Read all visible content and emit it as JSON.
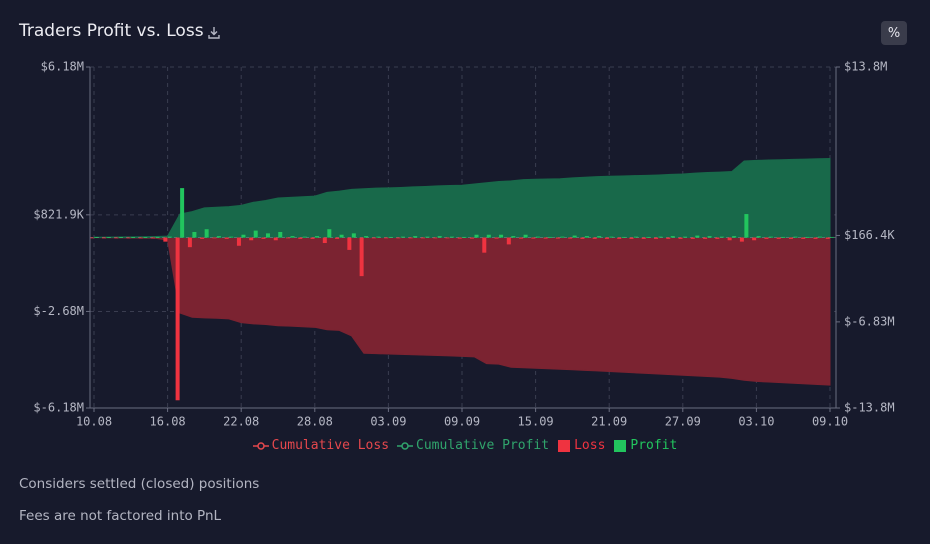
{
  "chart_data": {
    "type": "combo",
    "title": "Traders Profit vs. Loss",
    "categories": [
      "10.08",
      null,
      null,
      null,
      null,
      null,
      "16.08",
      null,
      null,
      null,
      null,
      null,
      "22.08",
      null,
      null,
      null,
      null,
      null,
      "28.08",
      null,
      null,
      null,
      null,
      null,
      "03.09",
      null,
      null,
      null,
      null,
      null,
      "09.09",
      null,
      null,
      null,
      null,
      null,
      "15.09",
      null,
      null,
      null,
      null,
      null,
      "21.09",
      null,
      null,
      null,
      null,
      null,
      "27.09",
      null,
      null,
      null,
      null,
      null,
      "03.10",
      null,
      null,
      null,
      null,
      null,
      "09.10"
    ],
    "ylim": [
      -6180000.0,
      6180000.0
    ],
    "yticks": [
      {
        "value": -6180000.0,
        "label": "$-6.18M"
      },
      {
        "value": -2680000.0,
        "label": "$-2.68M"
      },
      {
        "value": 821900,
        "label": "$821.9K"
      },
      {
        "value": 6180000.0,
        "label": "$6.18M"
      }
    ],
    "y2lim": [
      -13800000.0,
      13800000.0
    ],
    "y2ticks": [
      {
        "value": -13800000.0,
        "label": "$-13.8M"
      },
      {
        "value": -6830000.0,
        "label": "$-6.83M"
      },
      {
        "value": 166400,
        "label": "$166.4K"
      },
      {
        "value": 13800000.0,
        "label": "$13.8M"
      }
    ],
    "grid": true,
    "series": [
      {
        "name": "Cumulative Loss",
        "type": "area",
        "axis": "y2",
        "color": "#e5484d",
        "fill": "#7b2331",
        "values": [
          -10000.0,
          -20000.0,
          -30000.0,
          -40000.0,
          -50000.0,
          -60000.0,
          -210000.0,
          -6110000.0,
          -6460000.0,
          -6510000.0,
          -6540000.0,
          -6590000.0,
          -6890000.0,
          -6990000.0,
          -7040000.0,
          -7140000.0,
          -7170000.0,
          -7220000.0,
          -7270000.0,
          -7470000.0,
          -7520000.0,
          -7970000.0,
          -9370000.0,
          -9400000.0,
          -9430000.0,
          -9460000.0,
          -9490000.0,
          -9520000.0,
          -9550000.0,
          -9580000.0,
          -9620000.0,
          -9660000.0,
          -10210000.0,
          -10250000.0,
          -10500000.0,
          -10540000.0,
          -10580000.0,
          -10620000.0,
          -10660000.0,
          -10700000.0,
          -10750000.0,
          -10800000.0,
          -10850000.0,
          -10900000.0,
          -10950000.0,
          -11000000.0,
          -11050000.0,
          -11100000.0,
          -11150000.0,
          -11200000.0,
          -11250000.0,
          -11300000.0,
          -11400000.0,
          -11550000.0,
          -11650000.0,
          -11700000.0,
          -11750000.0,
          -11800000.0,
          -11850000.0,
          -11900000.0,
          -11950000.0
        ]
      },
      {
        "name": "Cumulative Profit",
        "type": "area",
        "axis": "y2",
        "color": "#30a46c",
        "fill": "#18694a",
        "values": [
          20000.0,
          30000.0,
          40000.0,
          50000.0,
          60000.0,
          80000.0,
          110000.0,
          1900000.0,
          2100000.0,
          2400000.0,
          2450000.0,
          2500000.0,
          2600000.0,
          2850000.0,
          3000000.0,
          3200000.0,
          3250000.0,
          3300000.0,
          3350000.0,
          3650000.0,
          3750000.0,
          3900000.0,
          3950000.0,
          4000000.0,
          4020000.0,
          4050000.0,
          4100000.0,
          4130000.0,
          4180000.0,
          4210000.0,
          4230000.0,
          4330000.0,
          4430000.0,
          4530000.0,
          4580000.0,
          4680000.0,
          4710000.0,
          4730000.0,
          4760000.0,
          4830000.0,
          4880000.0,
          4930000.0,
          4960000.0,
          4980000.0,
          5010000.0,
          5030000.0,
          5060000.0,
          5110000.0,
          5140000.0,
          5210000.0,
          5260000.0,
          5290000.0,
          5340000.0,
          6190000.0,
          6240000.0,
          6270000.0,
          6290000.0,
          6320000.0,
          6340000.0,
          6370000.0,
          6390000.0
        ]
      },
      {
        "name": "Loss",
        "type": "bar",
        "axis": "y",
        "color": "#ef3340",
        "values": [
          -10000.0,
          -10000.0,
          -10000.0,
          -10000.0,
          -10000.0,
          -10000.0,
          -150000.0,
          -5900000.0,
          -350000.0,
          -50000.0,
          -30000.0,
          -50000.0,
          -300000.0,
          -100000.0,
          -50000.0,
          -100000.0,
          -30000.0,
          -50000.0,
          -50000.0,
          -200000.0,
          -50000.0,
          -450000.0,
          -1400000.0,
          -30000.0,
          -30000.0,
          -30000.0,
          -30000.0,
          -30000.0,
          -30000.0,
          -30000.0,
          -40000.0,
          -40000.0,
          -550000.0,
          -40000.0,
          -250000.0,
          -40000.0,
          -40000.0,
          -40000.0,
          -40000.0,
          -40000.0,
          -50000.0,
          -50000.0,
          -50000.0,
          -50000.0,
          -50000.0,
          -50000.0,
          -50000.0,
          -50000.0,
          -50000.0,
          -50000.0,
          -50000.0,
          -50000.0,
          -100000.0,
          -150000.0,
          -100000.0,
          -50000.0,
          -50000.0,
          -50000.0,
          -50000.0,
          -50000.0,
          -50000.0
        ]
      },
      {
        "name": "Profit",
        "type": "bar",
        "axis": "y",
        "color": "#22c55e",
        "values": [
          20000.0,
          10000.0,
          10000.0,
          10000.0,
          10000.0,
          20000.0,
          30000.0,
          1790000.0,
          200000.0,
          300000.0,
          50000.0,
          30000.0,
          100000.0,
          250000.0,
          150000.0,
          200000.0,
          50000.0,
          30000.0,
          50000.0,
          300000.0,
          100000.0,
          150000.0,
          50000.0,
          30000.0,
          20000.0,
          30000.0,
          50000.0,
          30000.0,
          50000.0,
          30000.0,
          20000.0,
          100000.0,
          100000.0,
          100000.0,
          50000.0,
          100000.0,
          30000.0,
          20000.0,
          30000.0,
          70000.0,
          50000.0,
          50000.0,
          30000.0,
          20000.0,
          30000.0,
          20000.0,
          30000.0,
          50000.0,
          30000.0,
          70000.0,
          50000.0,
          30000.0,
          50000.0,
          850000.0,
          50000.0,
          30000.0,
          20000.0,
          30000.0,
          20000.0,
          30000.0,
          20000.0
        ]
      }
    ]
  },
  "controls": {
    "percent_toggle": "%"
  },
  "notes": [
    "Considers settled (closed) positions",
    "Fees are not factored into PnL"
  ]
}
